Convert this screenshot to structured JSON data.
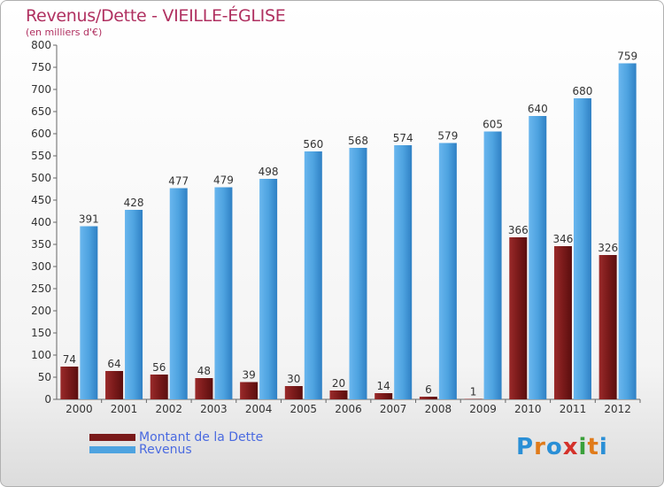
{
  "chart_data": {
    "type": "bar",
    "title": "Revenus/Dette - VIEILLE-ÉGLISE",
    "subtitle": "(en milliers d'€)",
    "categories": [
      "2000",
      "2001",
      "2002",
      "2003",
      "2004",
      "2005",
      "2006",
      "2007",
      "2008",
      "2009",
      "2010",
      "2011",
      "2012"
    ],
    "series": [
      {
        "name": "Montant de la Dette",
        "color": "#7a1a1a",
        "values": [
          74,
          64,
          56,
          48,
          39,
          30,
          20,
          14,
          6,
          1,
          366,
          346,
          326
        ]
      },
      {
        "name": "Revenus",
        "color": "#4ea3e0",
        "values": [
          391,
          428,
          477,
          479,
          498,
          560,
          568,
          574,
          579,
          605,
          640,
          680,
          759
        ]
      }
    ],
    "ylim": [
      0,
      800
    ],
    "yticks": [
      0,
      50,
      100,
      150,
      200,
      250,
      300,
      350,
      400,
      450,
      500,
      550,
      600,
      650,
      700,
      750,
      800
    ],
    "grid": false,
    "legend_position": "bottom-left"
  },
  "brand": {
    "letters": [
      "P",
      "r",
      "o",
      "x",
      "i",
      "t",
      "i"
    ],
    "colors": [
      "#2a8fd6",
      "#e07b1a",
      "#2a8fd6",
      "#d4312a",
      "#3aa03a",
      "#e07b1a",
      "#2a8fd6"
    ]
  }
}
